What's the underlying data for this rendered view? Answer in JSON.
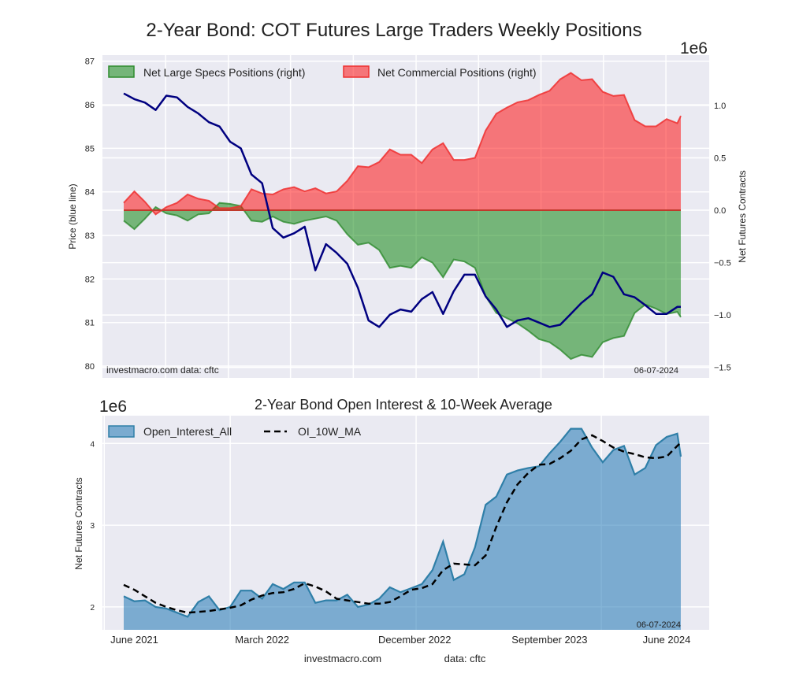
{
  "chart_data": [
    {
      "type": "area",
      "title": "2-Year Bond: COT Futures Large Traders Weekly Positions",
      "x_unit": "weeks since start (weekly data, June 2021 - June 2024)",
      "x": [
        0,
        3,
        6,
        9,
        12,
        15,
        18,
        21,
        24,
        27,
        30,
        33,
        36,
        39,
        42,
        45,
        48,
        51,
        54,
        57,
        60,
        63,
        66,
        69,
        72,
        75,
        78,
        81,
        84,
        87,
        90,
        93,
        96,
        99,
        102,
        105,
        108,
        111,
        114,
        117,
        120,
        123,
        126,
        129,
        132,
        135,
        138,
        141,
        144,
        147,
        150,
        153,
        156,
        157
      ],
      "xlim": [
        -6,
        165
      ],
      "xticks": [
        {
          "week": 3,
          "label": "June 2021"
        },
        {
          "week": 39,
          "label": "March 2022"
        },
        {
          "week": 82,
          "label": "December 2022"
        },
        {
          "week": 120,
          "label": "September 2023"
        },
        {
          "week": 153,
          "label": "June 2024"
        }
      ],
      "ylabel_left": "Price (blue line)",
      "ylim_left": [
        79.73,
        87.14
      ],
      "yticks_left": [
        "80",
        "81",
        "82",
        "83",
        "84",
        "85",
        "86",
        "87"
      ],
      "ylabel_right": "Net Futures Contracts",
      "right_scale": "1e6",
      "ylim_right": [
        -1.6,
        1.48
      ],
      "yticks_right": [
        {
          "v": -1.5,
          "label": "−1.5"
        },
        {
          "v": -1.0,
          "label": "−1.0"
        },
        {
          "v": -0.5,
          "label": "−0.5"
        },
        {
          "v": 0.0,
          "label": "0.0"
        },
        {
          "v": 0.5,
          "label": "0.5"
        },
        {
          "v": 1.0,
          "label": "1.0"
        }
      ],
      "series": [
        {
          "name": "Net Large Specs Positions (right)",
          "axis": "right",
          "color": "#2e8b2e",
          "fill": "rgba(0,128,0,0.5)",
          "values": [
            -0.1,
            -0.18,
            -0.08,
            0.03,
            -0.03,
            -0.05,
            -0.1,
            -0.04,
            -0.03,
            0.07,
            0.06,
            0.04,
            -0.1,
            -0.11,
            -0.06,
            -0.11,
            -0.13,
            -0.1,
            -0.08,
            -0.06,
            -0.1,
            -0.23,
            -0.33,
            -0.31,
            -0.38,
            -0.55,
            -0.53,
            -0.55,
            -0.45,
            -0.5,
            -0.64,
            -0.47,
            -0.49,
            -0.55,
            -0.82,
            -0.98,
            -1.03,
            -1.08,
            -1.15,
            -1.23,
            -1.26,
            -1.33,
            -1.42,
            -1.38,
            -1.4,
            -1.26,
            -1.22,
            -1.2,
            -0.98,
            -0.9,
            -0.94,
            -0.99,
            -0.97,
            -1.02
          ]
        },
        {
          "name": "Net Commercial Positions (right)",
          "axis": "right",
          "color": "#ee3030",
          "fill": "rgba(255,0,0,0.5)",
          "values": [
            0.07,
            0.18,
            0.08,
            -0.04,
            0.03,
            0.07,
            0.15,
            0.11,
            0.09,
            0.02,
            0.02,
            0.04,
            0.2,
            0.16,
            0.15,
            0.2,
            0.22,
            0.18,
            0.21,
            0.16,
            0.18,
            0.28,
            0.42,
            0.41,
            0.46,
            0.58,
            0.53,
            0.53,
            0.45,
            0.58,
            0.64,
            0.48,
            0.48,
            0.5,
            0.76,
            0.92,
            0.98,
            1.03,
            1.05,
            1.1,
            1.14,
            1.25,
            1.31,
            1.24,
            1.25,
            1.13,
            1.09,
            1.1,
            0.86,
            0.8,
            0.8,
            0.87,
            0.83,
            0.9
          ]
        },
        {
          "name": "Price",
          "axis": "left",
          "color": "#000080",
          "values": [
            86.26,
            86.13,
            86.05,
            85.88,
            86.21,
            86.17,
            85.95,
            85.8,
            85.6,
            85.5,
            85.15,
            85.0,
            84.4,
            84.2,
            83.17,
            82.95,
            83.05,
            83.2,
            82.2,
            82.8,
            82.6,
            82.35,
            81.8,
            81.05,
            80.9,
            81.18,
            81.3,
            81.25,
            81.54,
            81.7,
            81.2,
            81.72,
            82.1,
            82.1,
            81.6,
            81.3,
            80.9,
            81.05,
            81.1,
            81.0,
            80.9,
            80.95,
            81.2,
            81.45,
            81.65,
            82.15,
            82.05,
            81.65,
            81.58,
            81.4,
            81.2,
            81.2,
            81.36,
            81.36
          ]
        }
      ],
      "legend": "top-left",
      "annotations": {
        "source_left": "investmacro.com    data: cftc",
        "date": "06-07-2024"
      }
    },
    {
      "type": "area",
      "title": "2-Year Bond Open Interest & 10-Week Average",
      "scale": "1e6",
      "ylabel": "Net Futures Contracts",
      "ylim": [
        1.72,
        4.34
      ],
      "yticks": [
        "2",
        "3",
        "4"
      ],
      "xlim": [
        -6,
        165
      ],
      "xticks": [
        {
          "week": 3,
          "label": "June 2021"
        },
        {
          "week": 39,
          "label": "March 2022"
        },
        {
          "week": 82,
          "label": "December 2022"
        },
        {
          "week": 120,
          "label": "September 2023"
        },
        {
          "week": 153,
          "label": "June 2024"
        }
      ],
      "series": [
        {
          "name": "Open_Interest_All",
          "color": "#2f7fa8",
          "fill": "rgba(31,119,180,0.55)",
          "values": [
            2.13,
            2.07,
            2.08,
            2.0,
            1.98,
            1.93,
            1.88,
            2.06,
            2.13,
            1.96,
            2.0,
            2.2,
            2.2,
            2.1,
            2.28,
            2.22,
            2.3,
            2.3,
            2.05,
            2.08,
            2.08,
            2.15,
            2.0,
            2.03,
            2.1,
            2.24,
            2.18,
            2.23,
            2.28,
            2.45,
            2.8,
            2.33,
            2.4,
            2.73,
            3.25,
            3.35,
            3.62,
            3.67,
            3.7,
            3.72,
            3.88,
            4.02,
            4.18,
            4.18,
            3.95,
            3.77,
            3.92,
            3.97,
            3.62,
            3.7,
            3.98,
            4.08,
            4.12,
            3.84
          ]
        },
        {
          "name": "OI_10W_MA",
          "color": "#000000",
          "style": "dashed",
          "values": [
            2.27,
            2.21,
            2.13,
            2.05,
            2.0,
            1.96,
            1.93,
            1.94,
            1.95,
            1.97,
            1.99,
            2.02,
            2.09,
            2.14,
            2.17,
            2.18,
            2.22,
            2.29,
            2.25,
            2.19,
            2.1,
            2.08,
            2.06,
            2.04,
            2.04,
            2.06,
            2.13,
            2.21,
            2.23,
            2.28,
            2.45,
            2.53,
            2.52,
            2.51,
            2.63,
            2.98,
            3.28,
            3.5,
            3.64,
            3.74,
            3.75,
            3.82,
            3.91,
            4.05,
            4.1,
            4.03,
            3.95,
            3.9,
            3.87,
            3.83,
            3.82,
            3.84,
            3.97,
            4.01
          ]
        }
      ],
      "legend": "top-left",
      "annotations": {
        "date": "06-07-2024"
      }
    }
  ],
  "footer": {
    "site": "investmacro.com",
    "source": "data: cftc"
  }
}
